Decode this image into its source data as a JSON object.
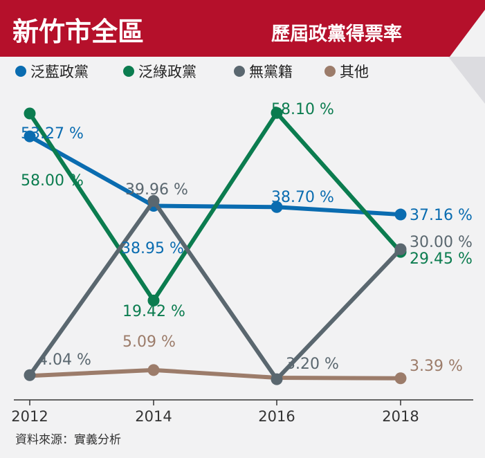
{
  "header": {
    "title": "新竹市全區",
    "subtitle": "歷屆政黨得票率",
    "colors": {
      "band": "#b5102b",
      "fold": "#dcdce0"
    }
  },
  "source": "資料來源：實義分析",
  "chart_data": {
    "type": "line",
    "categories": [
      "2012",
      "2014",
      "2016",
      "2018"
    ],
    "ylim": [
      0,
      65
    ],
    "grid": false,
    "legend": "top-left",
    "series": [
      {
        "name": "泛藍政黨",
        "color": "#0a6cb0",
        "values": [
          53.27,
          38.95,
          38.7,
          37.16
        ],
        "labels": [
          "53.27 %",
          "38.95 %",
          "38.70 %",
          "37.16 %"
        ]
      },
      {
        "name": "泛綠政黨",
        "color": "#0b7c4f",
        "values": [
          58.0,
          19.42,
          58.1,
          29.45
        ],
        "labels": [
          "58.00 %",
          "19.42 %",
          "58.10 %",
          "29.45 %"
        ]
      },
      {
        "name": "無黨籍",
        "color": "#5a676f",
        "values": [
          4.04,
          39.96,
          3.2,
          30.0
        ],
        "labels": [
          "4.04 %",
          "39.96 %",
          "3.20 %",
          "30.00 %"
        ]
      },
      {
        "name": "其他",
        "color": "#9c7c6a",
        "values": [
          null,
          5.09,
          null,
          3.39
        ],
        "labels": [
          "",
          "5.09 %",
          "",
          "3.39 %"
        ]
      }
    ]
  }
}
